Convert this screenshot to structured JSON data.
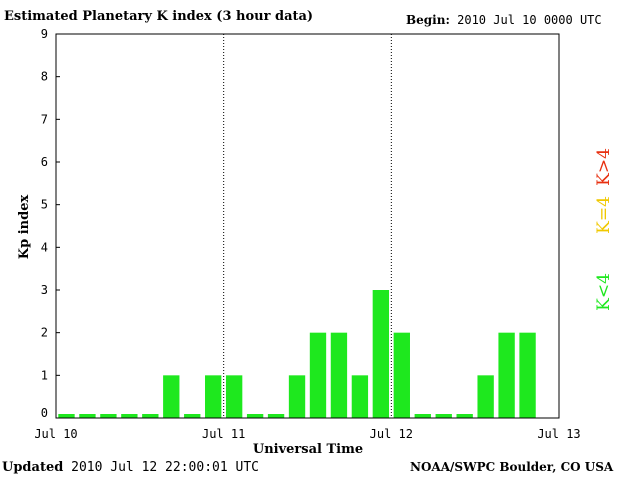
{
  "header": {
    "title": "Estimated Planetary K index (3 hour data)",
    "begin_label": "Begin:",
    "begin_value": "2010 Jul 10 0000 UTC"
  },
  "footer": {
    "updated_label": "Updated",
    "updated_value": "2010 Jul 12 22:00:01 UTC",
    "credit": "NOAA/SWPC Boulder, CO USA"
  },
  "legend": {
    "high": {
      "label": "K>4",
      "color": "#e83010"
    },
    "mid": {
      "label": "K=4",
      "color": "#f0c800"
    },
    "low": {
      "label": "K<4",
      "color": "#1ee81e"
    }
  },
  "chart_data": {
    "type": "bar",
    "title": "Estimated Planetary K index (3 hour data)",
    "xlabel": "Universal Time",
    "ylabel": "Kp index",
    "ylim": [
      0,
      9
    ],
    "yticks": [
      "0",
      "1",
      "2",
      "3",
      "4",
      "5",
      "6",
      "7",
      "8",
      "9"
    ],
    "xticks": [
      "Jul 10",
      "Jul 11",
      "Jul 12",
      "Jul 13"
    ],
    "bar_color": "#1ee81e",
    "day_divider_after_bars": [
      8,
      16
    ],
    "slots_total": 24,
    "values": [
      0,
      0,
      0,
      0,
      0,
      1,
      0,
      1,
      1,
      0,
      0,
      1,
      2,
      2,
      1,
      3,
      2,
      0,
      0,
      0,
      1,
      2,
      2
    ]
  }
}
